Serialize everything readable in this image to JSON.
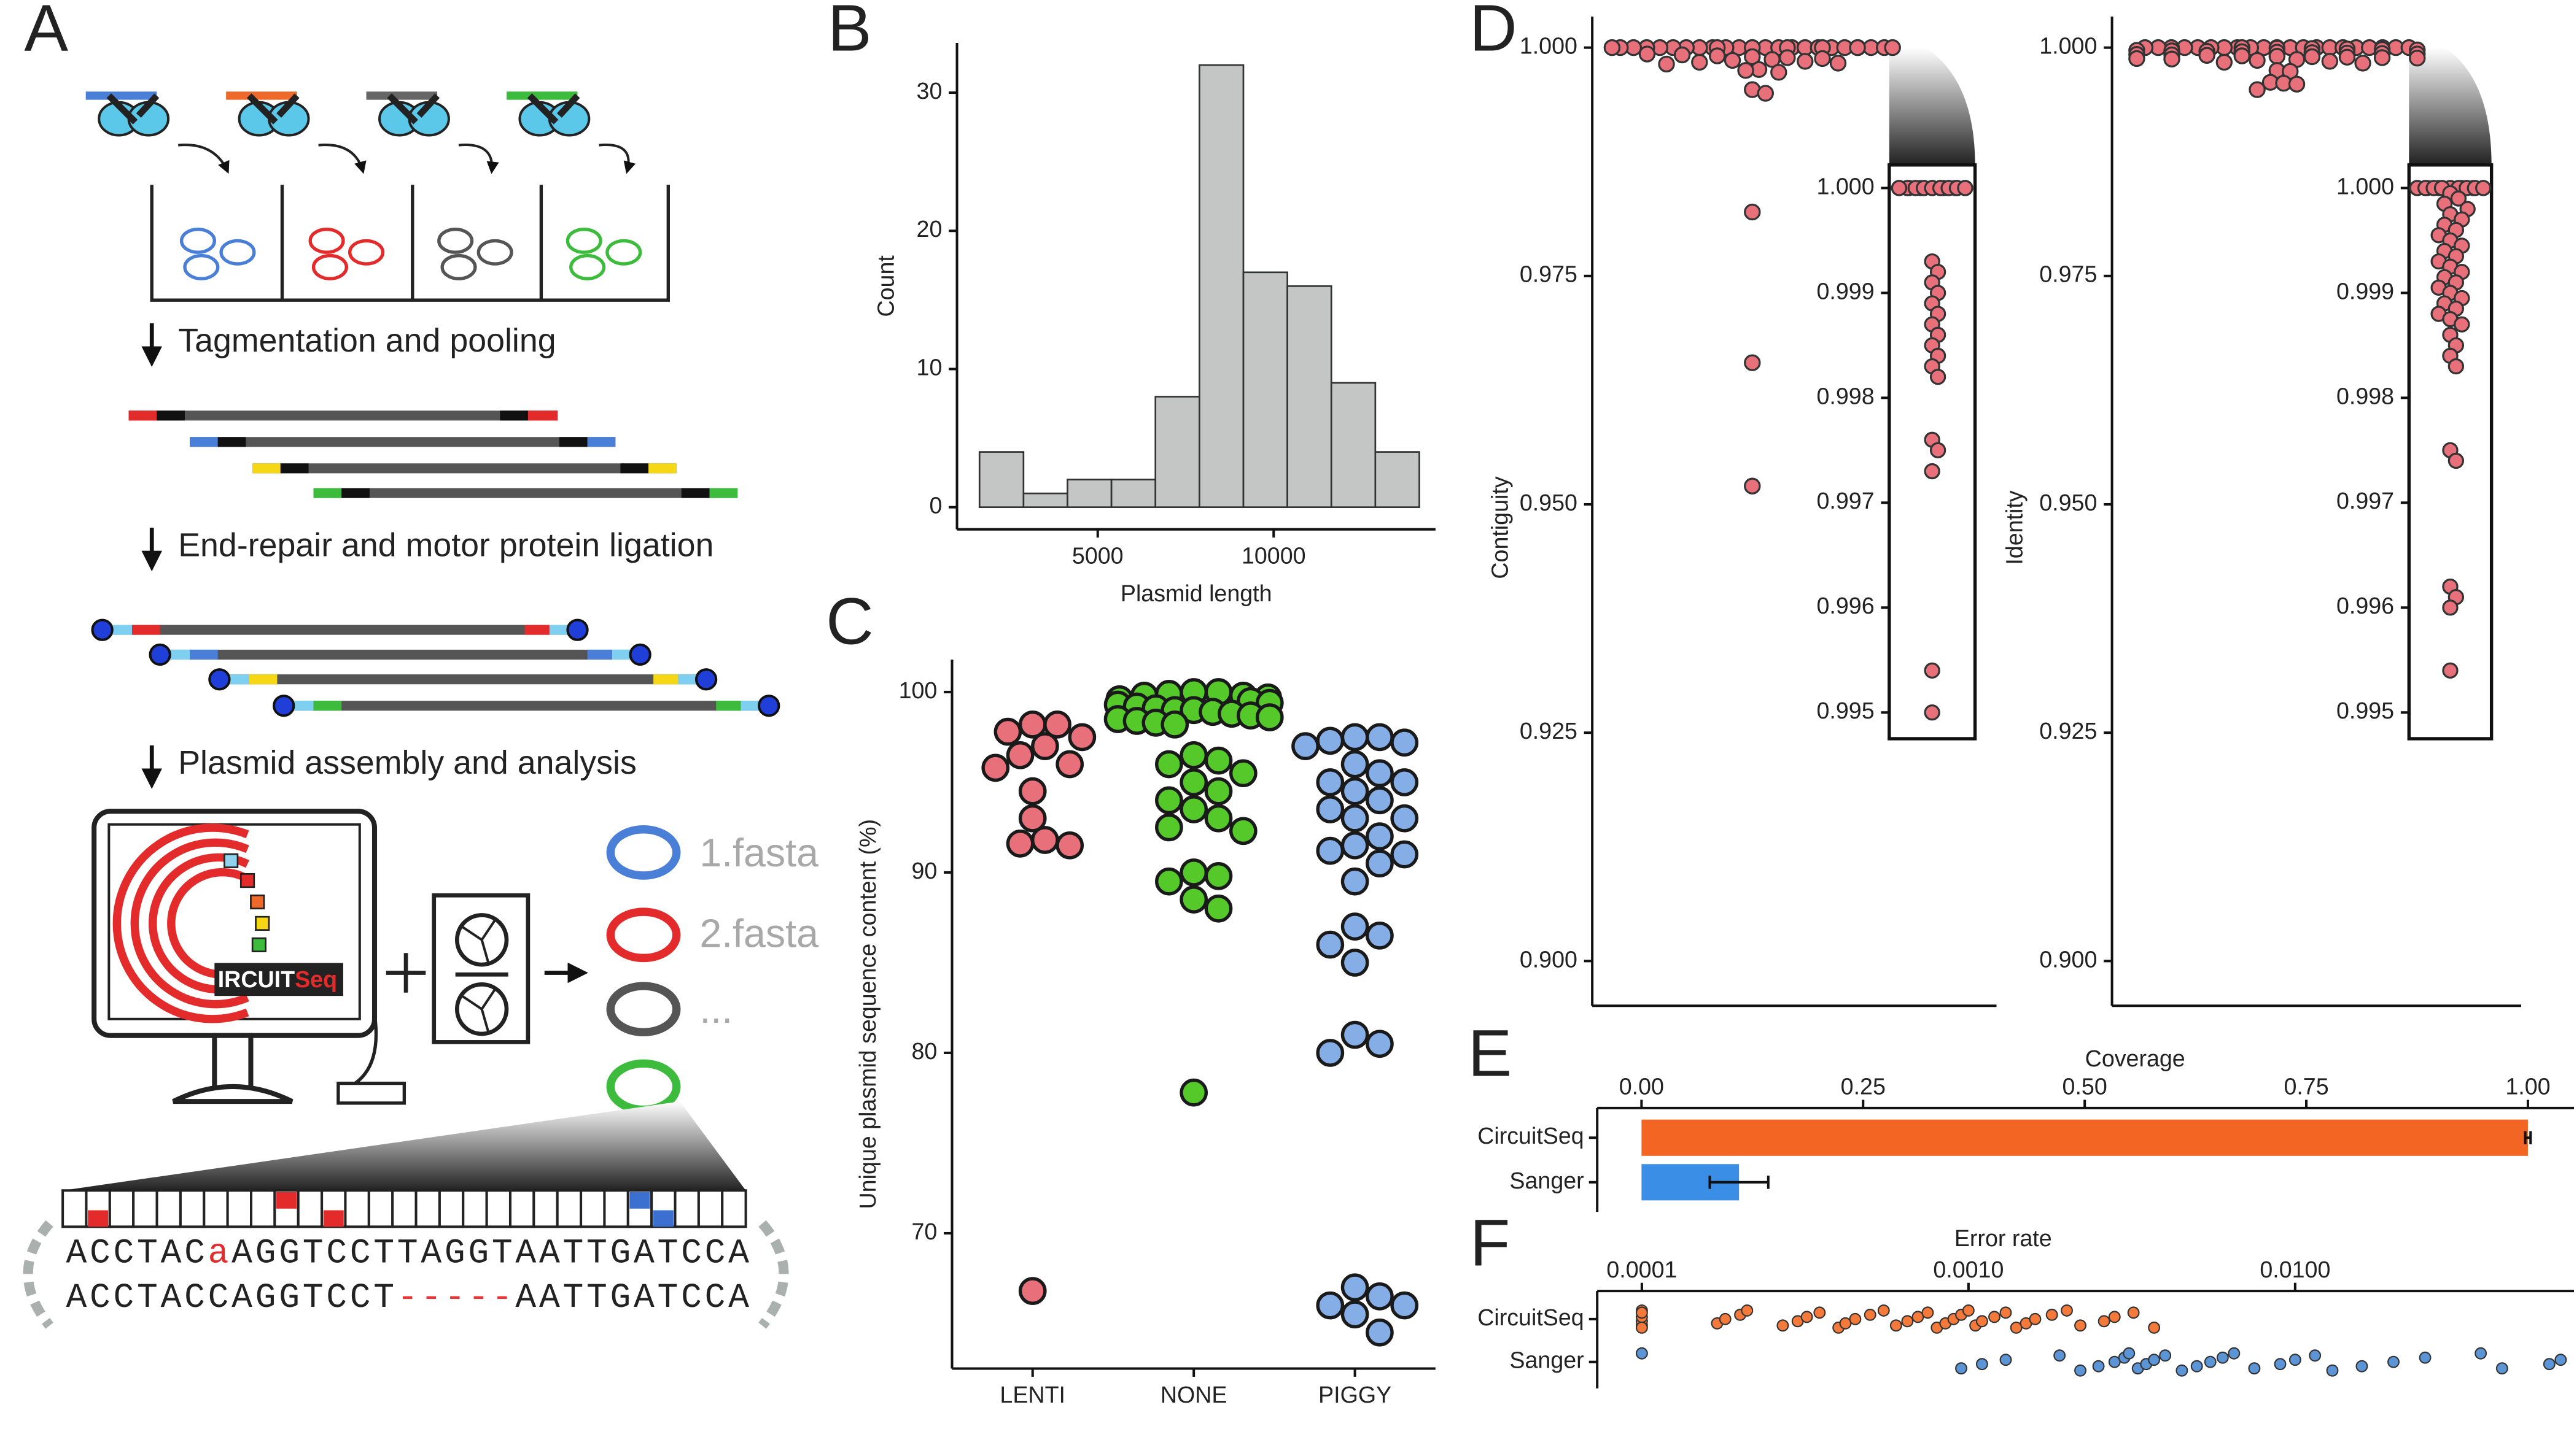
{
  "panels": [
    "A",
    "B",
    "C",
    "D",
    "E",
    "F"
  ],
  "diagram": {
    "steps": [
      "Tagmentation and pooling",
      "End-repair and motor protein ligation",
      "Plasmid assembly and analysis"
    ],
    "logo": [
      "IRCUIT",
      "Seq"
    ],
    "outputs": [
      "1.fasta",
      "2.fasta",
      "..."
    ],
    "sequences": [
      [
        "ACCTAC",
        "a",
        "AGGTCCTTAGGTAATTGATCCA"
      ],
      [
        "ACCTACCAGGTCCT",
        "-----",
        "AATTGATCCA"
      ]
    ]
  },
  "chart_data": [
    {
      "type": "histogram",
      "xlabel": "Plasmid length",
      "ylabel": "Count",
      "bins": [
        1640,
        2890,
        4140,
        5390,
        6640,
        7890,
        9140,
        10390,
        11640,
        12890,
        14140
      ],
      "counts": [
        4,
        1,
        2,
        2,
        8,
        32,
        17,
        16,
        9,
        4
      ],
      "color": "#c4c6c6",
      "xlim": [
        1000,
        14600
      ],
      "ylim": [
        -1.6,
        33.6
      ],
      "xticks": [
        5000,
        10000
      ],
      "yticks": [
        0,
        10,
        20,
        30
      ]
    },
    {
      "type": "strip",
      "ylabel": "Unique plasmid sequence content (%)",
      "categories": [
        "LENTI",
        "NONE",
        "PIGGY"
      ],
      "values": [
        [
          98.2,
          98.2,
          97.8,
          97.5,
          97.0,
          96.5,
          96.0,
          95.8,
          94.5,
          93.0,
          91.8,
          91.6,
          91.5,
          66.8
        ],
        [
          100,
          100,
          99.9,
          99.8,
          99.8,
          99.7,
          99.6,
          99.5,
          99.4,
          99.3,
          99.2,
          99.1,
          99.0,
          99.0,
          98.9,
          98.8,
          98.7,
          98.6,
          98.5,
          98.4,
          98.3,
          98.2,
          96.5,
          96.2,
          96.0,
          95.5,
          95.0,
          94.5,
          94.0,
          93.5,
          93.0,
          92.5,
          92.3,
          90.0,
          89.8,
          89.5,
          88.5,
          88.0,
          77.8
        ],
        [
          97.5,
          97.5,
          97.3,
          97.2,
          97.0,
          96.0,
          95.5,
          95.0,
          95.0,
          94.5,
          94.0,
          93.5,
          93.0,
          93.0,
          92.0,
          91.5,
          91.2,
          91.0,
          90.5,
          89.5,
          87.0,
          86.5,
          86.0,
          85.0,
          81.0,
          80.5,
          80.0,
          67.0,
          66.5,
          66.0,
          66.0,
          65.5,
          64.5
        ]
      ],
      "colors": [
        "#e8707a",
        "#56c92a",
        "#86aee6"
      ],
      "ylim": [
        62.5,
        101.8
      ],
      "yticks": [
        70,
        80,
        90,
        100
      ]
    },
    {
      "type": "dot",
      "ylabel": "Contiguity",
      "values": [
        1.0,
        1.0,
        1.0,
        1.0,
        1.0,
        1.0,
        1.0,
        1.0,
        1.0,
        1.0,
        1.0,
        1.0,
        1.0,
        1.0,
        1.0,
        1.0,
        1.0,
        1.0,
        1.0,
        1.0,
        1.0,
        1.0,
        1.0,
        1.0,
        1.0,
        1.0,
        1.0,
        1.0,
        0.9993,
        0.9992,
        0.9991,
        0.999,
        0.9989,
        0.9988,
        0.9987,
        0.9986,
        0.9985,
        0.9984,
        0.9983,
        0.9982,
        0.9976,
        0.9975,
        0.9973,
        0.9954,
        0.995,
        0.982,
        0.9655,
        0.952
      ],
      "color": "#e8707a",
      "ylim": [
        0.8951,
        1.0034
      ],
      "yticks": [
        {
          "value": 0.9,
          "label": "0.900"
        },
        0.925,
        {
          "value": 0.95,
          "label": "0.950"
        },
        0.975,
        {
          "value": 1.0,
          "label": "1.000"
        }
      ],
      "inset_ylim": [
        0.99475,
        1.00022
      ],
      "inset_yticks": [
        0.995,
        0.996,
        0.997,
        0.998,
        0.999,
        {
          "value": 1.0,
          "label": "1.000"
        }
      ]
    },
    {
      "type": "dot",
      "ylabel": "Identity",
      "values": [
        1.0,
        1.0,
        1.0,
        1.0,
        1.0,
        1.0,
        1.0,
        1.0,
        1.0,
        1.0,
        1.0,
        1.0,
        1.0,
        1.0,
        1.0,
        1.0,
        1.0,
        1.0,
        1.0,
        1.0,
        1.0,
        1.0,
        0.99995,
        0.9999,
        0.99985,
        0.9998,
        0.99975,
        0.9997,
        0.99965,
        0.9996,
        0.99955,
        0.9995,
        0.99945,
        0.9994,
        0.99935,
        0.9993,
        0.99925,
        0.9992,
        0.99915,
        0.9991,
        0.99905,
        0.999,
        0.99895,
        0.9989,
        0.99885,
        0.9988,
        0.99875,
        0.9987,
        0.9986,
        0.9985,
        0.9984,
        0.9983,
        0.9975,
        0.9974,
        0.9962,
        0.9961,
        0.996,
        0.9954
      ],
      "color": "#e8707a",
      "ylim": [
        0.8951,
        1.0034
      ],
      "yticks": [
        {
          "value": 0.9,
          "label": "0.900"
        },
        0.925,
        {
          "value": 0.95,
          "label": "0.950"
        },
        0.975,
        {
          "value": 1.0,
          "label": "1.000"
        }
      ],
      "inset_ylim": [
        0.99475,
        1.00022
      ],
      "inset_yticks": [
        0.995,
        0.996,
        0.997,
        0.998,
        0.999,
        {
          "value": 1.0,
          "label": "1.000"
        }
      ]
    },
    {
      "type": "hbar",
      "title": "Coverage",
      "categories": [
        "CircuitSeq",
        "Sanger"
      ],
      "values": [
        1.0,
        0.11
      ],
      "errors": [
        0.003,
        0.033
      ],
      "colors": [
        "#f26522",
        "#3b8ee6"
      ],
      "xlim": [
        -0.05,
        1.052
      ],
      "xticks": [
        {
          "value": 0,
          "label": "0.00"
        },
        0.25,
        {
          "value": 0.5,
          "label": "0.50"
        },
        0.75,
        {
          "value": 1.0,
          "label": "1.00"
        }
      ]
    },
    {
      "type": "logstrip",
      "title": "Error rate",
      "log_x": true,
      "categories": [
        "CircuitSeq",
        "Sanger"
      ],
      "values": [
        [
          0.0001,
          0.0001,
          0.0001,
          0.0001,
          0.0001,
          0.0001,
          0.00017,
          0.00018,
          0.0002,
          0.00021,
          0.00027,
          0.0003,
          0.00032,
          0.00035,
          0.0004,
          0.00042,
          0.00045,
          0.0005,
          0.00055,
          0.0006,
          0.00065,
          0.0007,
          0.00075,
          0.0008,
          0.00085,
          0.0009,
          0.00095,
          0.001,
          0.00105,
          0.0011,
          0.0012,
          0.0013,
          0.0014,
          0.0015,
          0.0016,
          0.0018,
          0.002,
          0.0022,
          0.0026,
          0.0028,
          0.0032,
          0.0037
        ],
        [
          0.0001,
          0.00095,
          0.0011,
          0.0013,
          0.0019,
          0.0022,
          0.0025,
          0.0028,
          0.003,
          0.0031,
          0.0033,
          0.0035,
          0.0037,
          0.004,
          0.0045,
          0.005,
          0.0055,
          0.006,
          0.0065,
          0.0075,
          0.009,
          0.01,
          0.0115,
          0.013,
          0.016,
          0.02,
          0.025,
          0.037,
          0.043,
          0.06,
          0.065
        ]
      ],
      "colors": [
        "#f47a3c",
        "#5b95d6"
      ],
      "xlim": [
        7.3e-05,
        0.0714
      ],
      "xticks": [
        0.0001,
        {
          "value": 0.001,
          "label": "0.0010"
        },
        {
          "value": 0.01,
          "label": "0.0100"
        }
      ]
    }
  ]
}
